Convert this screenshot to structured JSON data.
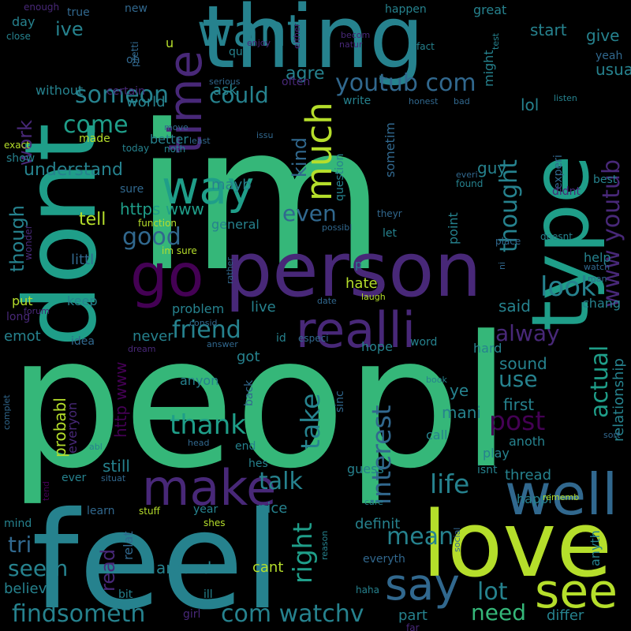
{
  "image": {
    "kind": "word-cloud",
    "background": "#000000",
    "palette": [
      "#440154",
      "#482878",
      "#3e4a89",
      "#31688e",
      "#26828e",
      "#1f9e89",
      "#35b779",
      "#6ece58",
      "#b5de2b",
      "#fde725"
    ]
  },
  "words": [
    "peopl",
    "im",
    "feel",
    "dont",
    "person",
    "thing",
    "love",
    "go",
    "type",
    "time",
    "well",
    "make",
    "realli",
    "see",
    "way",
    "want",
    "say",
    "much",
    "www youtub",
    "youtub com",
    "com watchv",
    "findsometh",
    "friend",
    "look",
    "thank",
    "interest",
    "take",
    "right",
    "someon",
    "come",
    "post",
    "life",
    "actual",
    "mean",
    "good",
    "talk",
    "thought",
    "lot",
    "need",
    "could",
    "use",
    "alway",
    "tri",
    "even",
    "seem",
    "work",
    "though",
    "understand",
    "kind",
    "read",
    "relationship",
    "ive",
    "tell",
    "agre",
    "usual",
    "start",
    "give",
    "lol",
    "guy",
    "https www",
    "http www",
    "sound",
    "first",
    "probabl",
    "mani",
    "ye",
    "still",
    "around",
    "believ",
    "differ",
    "part",
    "cant",
    "nice",
    "got",
    "live",
    "emot",
    "world",
    "hate",
    "said",
    "keep",
    "put",
    "day",
    "never",
    "help",
    "problem",
    "hope",
    "relat",
    "better",
    "maybe",
    "mayb",
    "littl",
    "anyon",
    "thread",
    "definit",
    "happi",
    "guess",
    "play",
    "anoth",
    "call",
    "everyon",
    "general",
    "sometim",
    "point",
    "might",
    "great",
    "happen",
    "new",
    "true",
    "enough",
    "pretti",
    "oh",
    "close",
    "becom",
    "natur",
    "fact",
    "test",
    "quit",
    "enjoy",
    "either",
    "serious",
    "without",
    "certain",
    "often",
    "write",
    "honest",
    "bad",
    "listen",
    "yeah",
    "ask",
    "made",
    "exact",
    "show",
    "today",
    "noth",
    "least",
    "issu",
    "move",
    "experi",
    "everi",
    "found",
    "best",
    "didnt",
    "question",
    "sure",
    "wonder",
    "function",
    "possibl",
    "im sure",
    "theyr",
    "let",
    "place",
    "doesnt",
    "rather",
    "watch",
    "ni",
    "man",
    "p",
    "laugh",
    "date",
    "forum",
    "long",
    "consid",
    "especi",
    "word",
    "answer",
    "dream",
    "idea",
    "back",
    "sinc",
    "book",
    "sort",
    "complet",
    "head",
    "abl",
    "situat",
    "ever",
    "tend",
    "end",
    "hes",
    "isnt",
    "learn",
    "stuff",
    "year",
    "shes",
    "mind",
    "care",
    "rememb",
    "social",
    "reason",
    "everyth",
    "haha",
    "ill",
    "girl",
    "bit",
    "far",
    "hard",
    "chang",
    "anyth",
    "u",
    "id",
    "save"
  ]
}
